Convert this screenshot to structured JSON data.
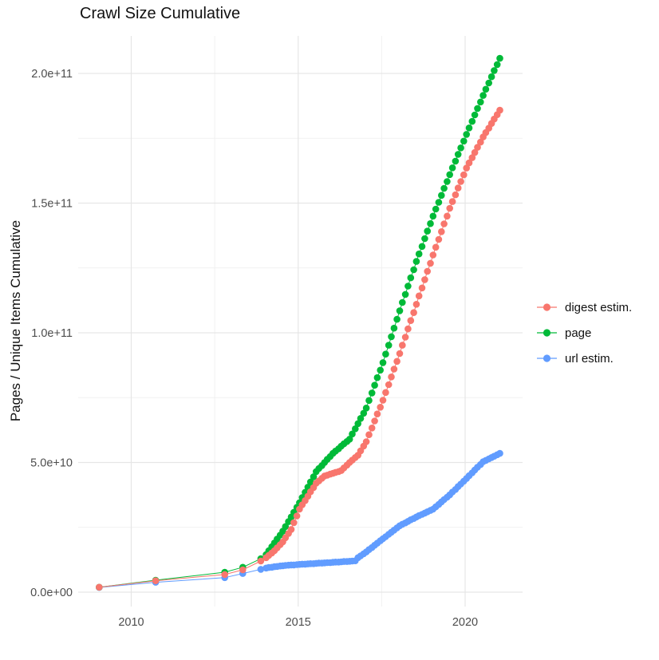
{
  "chart_data": {
    "type": "scatter",
    "title": "Crawl Size Cumulative",
    "xlabel": "",
    "ylabel": "Pages / Unique Items Cumulative",
    "values_unit": "billions (1e9) of pages / unique items",
    "xlim": [
      2008.45,
      2021.7
    ],
    "ylim_billions": [
      -5.5,
      214.5
    ],
    "grid": "on",
    "legend_position": "right",
    "x_ticks": [
      {
        "value": 2010,
        "label": "2010"
      },
      {
        "value": 2015,
        "label": "2015"
      },
      {
        "value": 2020,
        "label": "2020"
      }
    ],
    "x_minor_gridlines": [
      2012.5,
      2017.5
    ],
    "y_ticks": [
      {
        "value": 0,
        "label": "0.0e+00"
      },
      {
        "value": 50,
        "label": "5.0e+10"
      },
      {
        "value": 100,
        "label": "1.0e+11"
      },
      {
        "value": 150,
        "label": "1.5e+11"
      },
      {
        "value": 200,
        "label": "2.0e+11"
      }
    ],
    "y_minor_gridlines": [
      25,
      75,
      125,
      175
    ],
    "colors": {
      "digest_estim": "#F8766D",
      "page": "#00BA38",
      "url_estim": "#619CFF",
      "gridline_major": "#E6E6E6",
      "gridline_minor": "#F1F1F1",
      "tick_label": "#4D4D4D",
      "text": "#111111"
    },
    "series": [
      {
        "name": "digest estim.",
        "color": "#F8766D",
        "points": [
          [
            2009.04,
            1.9
          ],
          [
            2010.73,
            4.4
          ],
          [
            2012.8,
            6.8
          ],
          [
            2013.34,
            8.6
          ],
          [
            2013.88,
            12.0
          ],
          [
            2014.04,
            13.3
          ],
          [
            2014.12,
            14.2
          ],
          [
            2014.21,
            15.1
          ],
          [
            2014.29,
            16.0
          ],
          [
            2014.37,
            17.1
          ],
          [
            2014.46,
            18.3
          ],
          [
            2014.54,
            19.4
          ],
          [
            2014.62,
            21.0
          ],
          [
            2014.71,
            22.6
          ],
          [
            2014.79,
            24.2
          ],
          [
            2014.87,
            26.8
          ],
          [
            2014.96,
            29.4
          ],
          [
            2015.04,
            32.0
          ],
          [
            2015.12,
            33.7
          ],
          [
            2015.21,
            35.3
          ],
          [
            2015.29,
            37.0
          ],
          [
            2015.37,
            38.7
          ],
          [
            2015.46,
            40.3
          ],
          [
            2015.54,
            42.0
          ],
          [
            2015.62,
            42.9
          ],
          [
            2015.71,
            43.9
          ],
          [
            2015.79,
            44.8
          ],
          [
            2015.87,
            45.1
          ],
          [
            2015.96,
            45.5
          ],
          [
            2016.04,
            45.8
          ],
          [
            2016.12,
            46.2
          ],
          [
            2016.21,
            46.5
          ],
          [
            2016.29,
            46.9
          ],
          [
            2016.37,
            47.9
          ],
          [
            2016.46,
            49.0
          ],
          [
            2016.54,
            50.0
          ],
          [
            2016.62,
            50.9
          ],
          [
            2016.71,
            51.9
          ],
          [
            2016.79,
            52.8
          ],
          [
            2016.87,
            54.5
          ],
          [
            2016.96,
            56.3
          ],
          [
            2017.04,
            58.0
          ],
          [
            2017.12,
            60.7
          ],
          [
            2017.21,
            63.3
          ],
          [
            2017.29,
            66.0
          ],
          [
            2017.37,
            68.7
          ],
          [
            2017.46,
            71.3
          ],
          [
            2017.54,
            74.0
          ],
          [
            2017.62,
            77.0
          ],
          [
            2017.71,
            80.0
          ],
          [
            2017.79,
            83.0
          ],
          [
            2017.87,
            86.0
          ],
          [
            2017.96,
            89.0
          ],
          [
            2018.04,
            92.0
          ],
          [
            2018.12,
            95.2
          ],
          [
            2018.21,
            98.3
          ],
          [
            2018.29,
            101.5
          ],
          [
            2018.37,
            104.7
          ],
          [
            2018.46,
            107.8
          ],
          [
            2018.54,
            111.0
          ],
          [
            2018.62,
            114.2
          ],
          [
            2018.71,
            117.3
          ],
          [
            2018.79,
            120.5
          ],
          [
            2018.87,
            123.7
          ],
          [
            2018.96,
            126.8
          ],
          [
            2019.04,
            130.0
          ],
          [
            2019.12,
            133.0
          ],
          [
            2019.21,
            136.0
          ],
          [
            2019.29,
            139.0
          ],
          [
            2019.37,
            142.0
          ],
          [
            2019.46,
            145.0
          ],
          [
            2019.54,
            148.0
          ],
          [
            2019.62,
            150.6
          ],
          [
            2019.71,
            153.2
          ],
          [
            2019.79,
            155.8
          ],
          [
            2019.87,
            158.3
          ],
          [
            2019.96,
            160.9
          ],
          [
            2020.04,
            163.5
          ],
          [
            2020.12,
            165.5
          ],
          [
            2020.21,
            167.5
          ],
          [
            2020.29,
            169.5
          ],
          [
            2020.37,
            171.5
          ],
          [
            2020.46,
            173.5
          ],
          [
            2020.54,
            175.5
          ],
          [
            2020.62,
            177.2
          ],
          [
            2020.71,
            178.9
          ],
          [
            2020.79,
            180.7
          ],
          [
            2020.87,
            182.4
          ],
          [
            2020.96,
            184.1
          ],
          [
            2021.04,
            185.8
          ]
        ]
      },
      {
        "name": "page",
        "color": "#00BA38",
        "points": [
          [
            2009.04,
            1.9
          ],
          [
            2010.73,
            4.6
          ],
          [
            2012.8,
            7.7
          ],
          [
            2013.34,
            9.6
          ],
          [
            2013.88,
            12.9
          ],
          [
            2014.04,
            14.5
          ],
          [
            2014.12,
            16.0
          ],
          [
            2014.21,
            17.5
          ],
          [
            2014.29,
            19.0
          ],
          [
            2014.37,
            20.5
          ],
          [
            2014.46,
            22.0
          ],
          [
            2014.54,
            23.5
          ],
          [
            2014.62,
            25.3
          ],
          [
            2014.71,
            27.2
          ],
          [
            2014.79,
            29.0
          ],
          [
            2014.87,
            30.8
          ],
          [
            2014.96,
            32.7
          ],
          [
            2015.04,
            34.5
          ],
          [
            2015.12,
            36.5
          ],
          [
            2015.21,
            38.5
          ],
          [
            2015.29,
            40.5
          ],
          [
            2015.37,
            42.5
          ],
          [
            2015.46,
            44.5
          ],
          [
            2015.54,
            46.5
          ],
          [
            2015.62,
            47.7
          ],
          [
            2015.71,
            48.8
          ],
          [
            2015.79,
            50.0
          ],
          [
            2015.87,
            51.2
          ],
          [
            2015.96,
            52.3
          ],
          [
            2016.04,
            53.5
          ],
          [
            2016.12,
            54.4
          ],
          [
            2016.21,
            55.3
          ],
          [
            2016.29,
            56.3
          ],
          [
            2016.37,
            57.2
          ],
          [
            2016.46,
            58.1
          ],
          [
            2016.54,
            59.0
          ],
          [
            2016.62,
            61.0
          ],
          [
            2016.71,
            63.0
          ],
          [
            2016.79,
            65.0
          ],
          [
            2016.87,
            67.0
          ],
          [
            2016.96,
            69.0
          ],
          [
            2017.04,
            71.0
          ],
          [
            2017.12,
            73.9
          ],
          [
            2017.21,
            76.8
          ],
          [
            2017.29,
            79.8
          ],
          [
            2017.37,
            82.7
          ],
          [
            2017.46,
            85.6
          ],
          [
            2017.54,
            88.5
          ],
          [
            2017.62,
            91.8
          ],
          [
            2017.71,
            95.2
          ],
          [
            2017.79,
            98.5
          ],
          [
            2017.87,
            101.8
          ],
          [
            2017.96,
            105.2
          ],
          [
            2018.04,
            108.5
          ],
          [
            2018.12,
            111.7
          ],
          [
            2018.21,
            114.8
          ],
          [
            2018.29,
            118.0
          ],
          [
            2018.37,
            121.2
          ],
          [
            2018.46,
            124.3
          ],
          [
            2018.54,
            127.5
          ],
          [
            2018.62,
            130.4
          ],
          [
            2018.71,
            133.3
          ],
          [
            2018.79,
            136.3
          ],
          [
            2018.87,
            139.2
          ],
          [
            2018.96,
            142.1
          ],
          [
            2019.04,
            145.0
          ],
          [
            2019.12,
            147.7
          ],
          [
            2019.21,
            150.3
          ],
          [
            2019.29,
            153.0
          ],
          [
            2019.37,
            155.7
          ],
          [
            2019.46,
            158.3
          ],
          [
            2019.54,
            161.0
          ],
          [
            2019.62,
            163.6
          ],
          [
            2019.71,
            166.2
          ],
          [
            2019.79,
            168.8
          ],
          [
            2019.87,
            171.3
          ],
          [
            2019.96,
            173.9
          ],
          [
            2020.04,
            176.5
          ],
          [
            2020.12,
            179.0
          ],
          [
            2020.21,
            181.5
          ],
          [
            2020.29,
            184.0
          ],
          [
            2020.37,
            186.5
          ],
          [
            2020.46,
            189.0
          ],
          [
            2020.54,
            191.5
          ],
          [
            2020.62,
            193.9
          ],
          [
            2020.71,
            196.3
          ],
          [
            2020.79,
            198.7
          ],
          [
            2020.87,
            201.1
          ],
          [
            2020.96,
            203.4
          ],
          [
            2021.04,
            205.8
          ]
        ]
      },
      {
        "name": "url estim.",
        "color": "#619CFF",
        "points": [
          [
            2009.04,
            1.8
          ],
          [
            2010.73,
            3.8
          ],
          [
            2012.8,
            5.6
          ],
          [
            2013.34,
            7.2
          ],
          [
            2013.88,
            8.8
          ],
          [
            2014.04,
            9.3
          ],
          [
            2014.12,
            9.5
          ],
          [
            2014.21,
            9.6
          ],
          [
            2014.29,
            9.8
          ],
          [
            2014.37,
            9.9
          ],
          [
            2014.46,
            10.1
          ],
          [
            2014.54,
            10.2
          ],
          [
            2014.62,
            10.3
          ],
          [
            2014.71,
            10.4
          ],
          [
            2014.79,
            10.5
          ],
          [
            2014.87,
            10.5
          ],
          [
            2014.96,
            10.6
          ],
          [
            2015.04,
            10.7
          ],
          [
            2015.12,
            10.8
          ],
          [
            2015.21,
            10.8
          ],
          [
            2015.29,
            10.9
          ],
          [
            2015.37,
            11.0
          ],
          [
            2015.46,
            11.0
          ],
          [
            2015.54,
            11.1
          ],
          [
            2015.62,
            11.2
          ],
          [
            2015.71,
            11.2
          ],
          [
            2015.79,
            11.3
          ],
          [
            2015.87,
            11.4
          ],
          [
            2015.96,
            11.4
          ],
          [
            2016.04,
            11.5
          ],
          [
            2016.12,
            11.6
          ],
          [
            2016.21,
            11.6
          ],
          [
            2016.29,
            11.7
          ],
          [
            2016.37,
            11.8
          ],
          [
            2016.46,
            11.8
          ],
          [
            2016.54,
            11.9
          ],
          [
            2016.62,
            12.0
          ],
          [
            2016.71,
            12.1
          ],
          [
            2016.79,
            13.3
          ],
          [
            2016.87,
            14.0
          ],
          [
            2016.96,
            14.8
          ],
          [
            2017.04,
            15.5
          ],
          [
            2017.12,
            16.4
          ],
          [
            2017.21,
            17.2
          ],
          [
            2017.29,
            18.1
          ],
          [
            2017.37,
            18.9
          ],
          [
            2017.46,
            19.8
          ],
          [
            2017.54,
            20.6
          ],
          [
            2017.62,
            21.4
          ],
          [
            2017.71,
            22.3
          ],
          [
            2017.79,
            23.1
          ],
          [
            2017.87,
            23.9
          ],
          [
            2017.96,
            24.8
          ],
          [
            2018.04,
            25.6
          ],
          [
            2018.12,
            26.2
          ],
          [
            2018.21,
            26.7
          ],
          [
            2018.29,
            27.3
          ],
          [
            2018.37,
            27.9
          ],
          [
            2018.46,
            28.4
          ],
          [
            2018.54,
            29.0
          ],
          [
            2018.62,
            29.5
          ],
          [
            2018.71,
            30.0
          ],
          [
            2018.79,
            30.5
          ],
          [
            2018.87,
            31.0
          ],
          [
            2018.96,
            31.5
          ],
          [
            2019.04,
            32.0
          ],
          [
            2019.12,
            32.9
          ],
          [
            2019.21,
            33.8
          ],
          [
            2019.29,
            34.8
          ],
          [
            2019.37,
            35.7
          ],
          [
            2019.46,
            36.6
          ],
          [
            2019.54,
            37.5
          ],
          [
            2019.62,
            38.6
          ],
          [
            2019.71,
            39.6
          ],
          [
            2019.79,
            40.7
          ],
          [
            2019.87,
            41.7
          ],
          [
            2019.96,
            42.8
          ],
          [
            2020.04,
            43.8
          ],
          [
            2020.12,
            44.9
          ],
          [
            2020.21,
            46.0
          ],
          [
            2020.29,
            47.1
          ],
          [
            2020.37,
            48.2
          ],
          [
            2020.46,
            49.2
          ],
          [
            2020.54,
            50.3
          ],
          [
            2020.62,
            50.8
          ],
          [
            2020.71,
            51.4
          ],
          [
            2020.79,
            51.9
          ],
          [
            2020.87,
            52.4
          ],
          [
            2020.96,
            53.0
          ],
          [
            2021.04,
            53.5
          ]
        ]
      }
    ]
  }
}
